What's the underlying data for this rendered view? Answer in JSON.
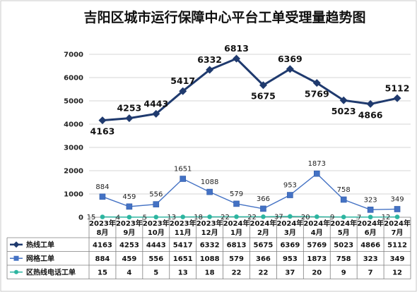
{
  "chart_data": {
    "type": "line",
    "title": "吉阳区城市运行保障中心平台工单受理量趋势图",
    "categories": [
      [
        "2023年",
        "8月"
      ],
      [
        "2023年",
        "9月"
      ],
      [
        "2023年",
        "10月"
      ],
      [
        "2023年",
        "11月"
      ],
      [
        "2023年",
        "12月"
      ],
      [
        "2024年",
        "1月"
      ],
      [
        "2024年",
        "2月"
      ],
      [
        "2024年",
        "3月"
      ],
      [
        "2024年",
        "4月"
      ],
      [
        "2024年",
        "5月"
      ],
      [
        "2024年",
        "6月"
      ],
      [
        "2024年",
        "7月"
      ]
    ],
    "y_ticks": [
      "0",
      "1000",
      "2000",
      "3000",
      "4000",
      "5000",
      "6000",
      "7000"
    ],
    "ylim": [
      0,
      7000
    ],
    "grid": true,
    "legend": "data-table",
    "series": [
      {
        "name": "热线工单",
        "color": "#1f3a6e",
        "marker": "diamond",
        "values": [
          4163,
          4253,
          4443,
          5417,
          6332,
          6813,
          5675,
          6369,
          5769,
          5023,
          4866,
          5112
        ]
      },
      {
        "name": "网格工单",
        "color": "#4472c4",
        "marker": "square",
        "values": [
          884,
          459,
          556,
          1651,
          1088,
          579,
          366,
          953,
          1873,
          758,
          323,
          349
        ]
      },
      {
        "name": "区热线电话工单",
        "color": "#2cb5a0",
        "marker": "circle",
        "values": [
          15,
          4,
          5,
          13,
          18,
          22,
          22,
          37,
          20,
          9,
          7,
          12
        ]
      }
    ]
  }
}
